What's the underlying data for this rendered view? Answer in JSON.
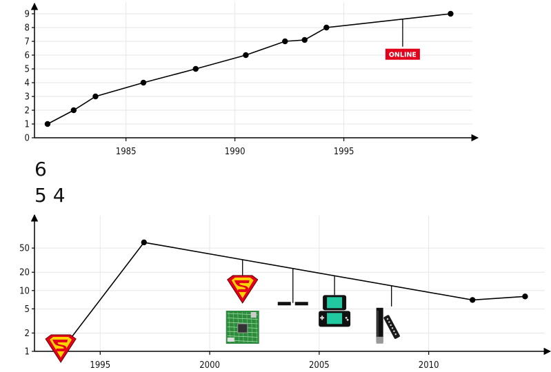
{
  "chart_data": [
    {
      "type": "line",
      "xlim": [
        1980.8,
        2000.9
      ],
      "ylim": [
        0,
        9.6
      ],
      "xticks": [
        1985,
        1990,
        1995
      ],
      "yticks": [
        0,
        1,
        2,
        3,
        4,
        5,
        6,
        7,
        8,
        9
      ],
      "grid": true,
      "series": [
        {
          "x": [
            1981.4,
            1982.6,
            1983.6,
            1985.8,
            1988.2,
            1990.5,
            1992.3,
            1993.2,
            1994.2,
            1999.9
          ],
          "y": [
            1,
            2,
            3,
            4,
            5,
            6,
            7,
            7.1,
            8,
            9
          ]
        }
      ],
      "annotations": [
        {
          "x": 1997.7,
          "label": "ONLINE",
          "color": "#e3001b"
        }
      ]
    },
    {
      "type": "line",
      "scale_y": "log",
      "xlim": [
        1992.0,
        2015.3
      ],
      "ylim": [
        1,
        150
      ],
      "xticks": [
        1995,
        2000,
        2005,
        2010
      ],
      "yticks": [
        1,
        2,
        5,
        10,
        20,
        50
      ],
      "grid": true,
      "series": [
        {
          "x": [
            1993.2,
            1997.0,
            2012.0,
            2014.4
          ],
          "y": [
            1,
            62,
            7,
            8
          ]
        }
      ],
      "annotations": [
        {
          "x": 1993.2,
          "icon": "superman-shield-icon",
          "on_line": true
        },
        {
          "x": 2001.5,
          "icon": "superman-shield-icon"
        },
        {
          "x": 2001.5,
          "icon": "circuit-board-icon"
        },
        {
          "x": 2003.8,
          "icon": "bar-pair-icon"
        },
        {
          "x": 2005.7,
          "icon": "handheld-console-icon"
        },
        {
          "x": 2008.3,
          "icon": "motion-controller-icon"
        }
      ]
    }
  ],
  "fragments": {
    "line1": "6",
    "line2": "5 4"
  },
  "colors": {
    "line": "#000000",
    "grid": "#e6e6e6",
    "shield_red": "#e3001b",
    "shield_yellow": "#ffd200",
    "board_green": "#2e8b3e",
    "screen_teal": "#22c9a0"
  }
}
